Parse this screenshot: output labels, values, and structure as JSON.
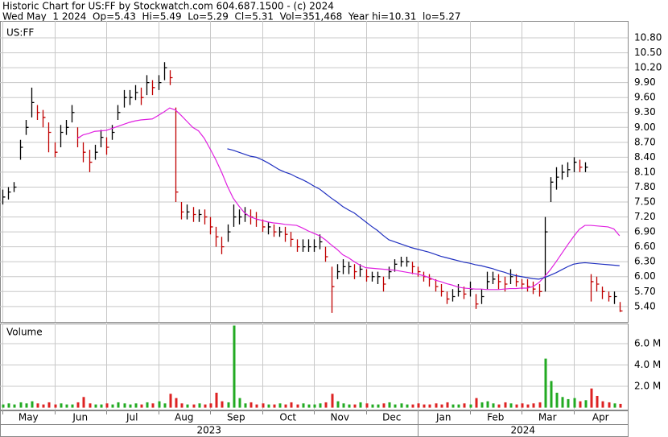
{
  "header": {
    "title": "Historic Chart for US:FF by Stockwatch.com 604.687.1500 - (c) 2024",
    "quote": "Wed May  1 2024  Op=5.43  Hi=5.49  Lo=5.29  Cl=5.31  Vol=351,468  Year hi=10.31  lo=5.27"
  },
  "chart_data": {
    "type": "ohlc",
    "symbol": "US:FF",
    "volume_title": "Volume",
    "categories": [
      "May",
      null,
      null,
      null,
      null,
      null,
      null,
      null,
      null,
      "Jun",
      null,
      null,
      null,
      null,
      null,
      null,
      null,
      null,
      "Jul",
      null,
      null,
      null,
      null,
      null,
      null,
      null,
      null,
      "Aug",
      null,
      null,
      null,
      null,
      null,
      null,
      null,
      null,
      "Sep",
      null,
      null,
      null,
      null,
      null,
      null,
      null,
      null,
      "Oct",
      null,
      null,
      null,
      null,
      null,
      null,
      null,
      null,
      "Nov",
      null,
      null,
      null,
      null,
      null,
      null,
      null,
      null,
      "Dec",
      null,
      null,
      null,
      null,
      null,
      null,
      null,
      null,
      "Jan",
      null,
      null,
      null,
      null,
      null,
      null,
      null,
      null,
      "Feb",
      null,
      null,
      null,
      null,
      null,
      null,
      null,
      null,
      "Mar",
      null,
      null,
      null,
      null,
      null,
      null,
      null,
      null,
      "Apr",
      null,
      null,
      null,
      null,
      null,
      null,
      null,
      null
    ],
    "years": [
      "2023",
      "2024"
    ],
    "high": [
      7.75,
      7.8,
      7.9,
      8.75,
      9.15,
      9.8,
      9.45,
      9.35,
      9.1,
      8.7,
      9.05,
      9.15,
      9.45,
      9.0,
      8.7,
      8.55,
      8.65,
      8.95,
      8.8,
      9.05,
      9.45,
      9.75,
      9.75,
      9.85,
      9.8,
      10.05,
      9.95,
      10.05,
      10.31,
      10.15,
      9.4,
      7.5,
      7.45,
      7.4,
      7.35,
      7.35,
      7.2,
      7.0,
      6.8,
      7.05,
      7.45,
      7.35,
      7.4,
      7.35,
      7.3,
      7.15,
      7.1,
      7.05,
      7.0,
      7.0,
      6.9,
      6.75,
      6.75,
      6.75,
      6.75,
      6.85,
      6.6,
      6.2,
      6.25,
      6.35,
      6.3,
      6.25,
      6.25,
      6.15,
      6.1,
      6.1,
      6.0,
      6.2,
      6.35,
      6.4,
      6.4,
      6.3,
      6.2,
      6.1,
      6.05,
      5.95,
      5.85,
      5.7,
      5.75,
      5.85,
      5.8,
      5.9,
      5.65,
      5.75,
      6.1,
      6.1,
      6.05,
      6.0,
      6.15,
      6.05,
      5.95,
      5.95,
      5.9,
      5.85,
      7.2,
      8.0,
      8.2,
      8.25,
      8.3,
      8.4,
      8.35,
      8.3,
      6.05,
      6.0,
      5.8,
      5.7,
      5.7,
      5.49
    ],
    "low": [
      7.45,
      7.55,
      7.7,
      8.35,
      8.85,
      9.2,
      9.15,
      9.0,
      8.5,
      8.4,
      8.6,
      8.85,
      9.1,
      8.6,
      8.3,
      8.1,
      8.35,
      8.6,
      8.45,
      8.75,
      9.15,
      9.4,
      9.45,
      9.55,
      9.45,
      9.65,
      9.65,
      9.75,
      9.95,
      9.85,
      7.5,
      7.15,
      7.15,
      7.1,
      7.1,
      7.05,
      6.85,
      6.6,
      6.45,
      6.7,
      7.0,
      7.05,
      7.1,
      7.05,
      7.0,
      6.9,
      6.85,
      6.8,
      6.8,
      6.7,
      6.6,
      6.5,
      6.5,
      6.5,
      6.5,
      6.55,
      6.3,
      5.27,
      5.95,
      6.05,
      6.05,
      5.95,
      6.0,
      5.9,
      5.9,
      5.85,
      5.7,
      5.95,
      6.1,
      6.2,
      6.2,
      6.05,
      6.0,
      5.9,
      5.8,
      5.7,
      5.6,
      5.45,
      5.5,
      5.6,
      5.55,
      5.6,
      5.35,
      5.45,
      5.75,
      5.85,
      5.75,
      5.7,
      5.85,
      5.8,
      5.75,
      5.7,
      5.65,
      5.6,
      5.7,
      7.5,
      7.75,
      7.95,
      8.0,
      8.1,
      8.1,
      8.1,
      5.5,
      5.7,
      5.55,
      5.5,
      5.45,
      5.29
    ],
    "close": [
      7.6,
      7.7,
      7.8,
      8.6,
      9.0,
      9.5,
      9.3,
      9.2,
      8.9,
      8.5,
      8.9,
      9.0,
      9.3,
      8.8,
      8.5,
      8.3,
      8.5,
      8.8,
      8.6,
      8.9,
      9.3,
      9.6,
      9.6,
      9.7,
      9.6,
      9.9,
      9.8,
      9.9,
      10.2,
      10.0,
      7.7,
      7.3,
      7.3,
      7.25,
      7.25,
      7.2,
      7.0,
      6.8,
      6.6,
      6.9,
      7.2,
      7.2,
      7.25,
      7.2,
      7.15,
      7.0,
      7.0,
      6.9,
      6.9,
      6.85,
      6.75,
      6.6,
      6.6,
      6.6,
      6.6,
      6.7,
      6.4,
      5.8,
      6.1,
      6.2,
      6.2,
      6.1,
      6.15,
      6.0,
      6.0,
      6.0,
      5.85,
      6.1,
      6.25,
      6.3,
      6.3,
      6.2,
      6.1,
      6.0,
      5.95,
      5.8,
      5.7,
      5.55,
      5.6,
      5.7,
      5.65,
      5.75,
      5.45,
      5.6,
      5.9,
      5.95,
      5.9,
      5.85,
      6.0,
      5.9,
      5.85,
      5.8,
      5.75,
      5.7,
      6.9,
      7.9,
      8.0,
      8.1,
      8.15,
      8.3,
      8.2,
      8.2,
      5.9,
      5.85,
      5.7,
      5.6,
      5.6,
      5.31
    ],
    "volume": [
      0.3,
      0.4,
      0.3,
      0.5,
      0.4,
      0.6,
      0.4,
      0.3,
      0.5,
      0.3,
      0.4,
      0.3,
      0.3,
      0.5,
      1.0,
      0.4,
      0.3,
      0.3,
      0.4,
      0.3,
      0.5,
      0.4,
      0.3,
      0.4,
      0.3,
      0.5,
      0.4,
      0.6,
      0.4,
      1.3,
      0.9,
      0.4,
      0.3,
      0.3,
      0.4,
      0.3,
      0.4,
      1.4,
      0.6,
      0.5,
      7.7,
      0.9,
      0.4,
      0.5,
      0.3,
      0.4,
      0.3,
      0.3,
      0.4,
      0.3,
      0.5,
      0.3,
      0.4,
      0.3,
      0.3,
      0.4,
      0.5,
      1.3,
      0.6,
      0.4,
      0.3,
      0.3,
      0.5,
      0.4,
      0.3,
      0.3,
      0.4,
      0.5,
      0.3,
      0.4,
      0.3,
      0.3,
      0.4,
      0.3,
      0.3,
      0.4,
      0.3,
      0.5,
      0.3,
      0.3,
      0.4,
      0.3,
      0.9,
      0.5,
      0.6,
      0.4,
      0.3,
      0.5,
      0.4,
      0.3,
      0.4,
      0.3,
      0.4,
      0.5,
      4.6,
      2.5,
      1.4,
      1.0,
      0.8,
      0.9,
      0.6,
      0.7,
      1.8,
      1.1,
      0.6,
      0.5,
      0.4,
      0.35
    ],
    "moving_averages": [
      {
        "color": "#e020e0",
        "values": [
          null,
          null,
          null,
          null,
          null,
          null,
          null,
          null,
          null,
          null,
          null,
          null,
          null,
          8.78,
          8.85,
          8.88,
          8.92,
          8.93,
          8.94,
          8.98,
          9.02,
          9.06,
          9.1,
          9.13,
          9.15,
          9.16,
          9.17,
          9.24,
          9.31,
          9.39,
          9.35,
          9.24,
          9.12,
          9.0,
          8.93,
          8.78,
          8.57,
          8.35,
          8.1,
          7.82,
          7.58,
          7.42,
          7.28,
          7.2,
          7.16,
          7.13,
          7.1,
          7.08,
          7.07,
          7.05,
          7.04,
          7.03,
          6.98,
          6.92,
          6.87,
          6.82,
          6.74,
          6.64,
          6.55,
          6.44,
          6.38,
          6.3,
          6.23,
          6.18,
          6.17,
          6.16,
          6.15,
          6.14,
          6.13,
          6.11,
          6.09,
          6.07,
          6.05,
          6.02,
          5.98,
          5.93,
          5.9,
          5.86,
          5.83,
          5.79,
          5.77,
          5.76,
          5.75,
          5.75,
          5.74,
          5.74,
          5.74,
          5.75,
          5.76,
          5.76,
          5.77,
          5.77,
          5.8,
          5.88,
          6.0,
          6.14,
          6.3,
          6.47,
          6.64,
          6.8,
          6.95,
          7.03,
          7.03,
          7.02,
          7.01,
          7.0,
          6.96,
          6.82
        ]
      },
      {
        "color": "#2030c0",
        "values": [
          null,
          null,
          null,
          null,
          null,
          null,
          null,
          null,
          null,
          null,
          null,
          null,
          null,
          null,
          null,
          null,
          null,
          null,
          null,
          null,
          null,
          null,
          null,
          null,
          null,
          null,
          null,
          null,
          null,
          null,
          null,
          null,
          null,
          null,
          null,
          null,
          null,
          null,
          null,
          8.57,
          8.54,
          8.5,
          8.46,
          8.42,
          8.4,
          8.35,
          8.29,
          8.22,
          8.15,
          8.1,
          8.06,
          8.0,
          7.95,
          7.89,
          7.82,
          7.76,
          7.67,
          7.58,
          7.5,
          7.41,
          7.34,
          7.28,
          7.19,
          7.1,
          7.01,
          6.93,
          6.83,
          6.74,
          6.7,
          6.66,
          6.62,
          6.58,
          6.55,
          6.52,
          6.49,
          6.45,
          6.41,
          6.38,
          6.35,
          6.32,
          6.29,
          6.27,
          6.24,
          6.22,
          6.19,
          6.16,
          6.12,
          6.09,
          6.05,
          6.02,
          6.0,
          5.98,
          5.96,
          5.95,
          5.98,
          6.03,
          6.08,
          6.14,
          6.2,
          6.25,
          6.27,
          6.28,
          6.27,
          6.26,
          6.25,
          6.24,
          6.23,
          6.22
        ]
      }
    ],
    "up_color": "#000000",
    "down_color": "#c00000",
    "volume_up_color": "#22aa22",
    "volume_down_color": "#dd2222",
    "ylim": [
      5.09,
      11.14
    ],
    "yticks": [
      {
        "value": 5.4,
        "label": "5.40"
      },
      {
        "value": 5.7,
        "label": "5.70"
      },
      {
        "value": 6.0,
        "label": "6.00"
      },
      {
        "value": 6.3,
        "label": "6.30"
      },
      {
        "value": 6.6,
        "label": "6.60"
      },
      {
        "value": 6.9,
        "label": "6.90"
      },
      {
        "value": 7.2,
        "label": "7.20"
      },
      {
        "value": 7.5,
        "label": "7.50"
      },
      {
        "value": 7.8,
        "label": "7.80"
      },
      {
        "value": 8.1,
        "label": "8.10"
      },
      {
        "value": 8.4,
        "label": "8.40"
      },
      {
        "value": 8.7,
        "label": "8.70"
      },
      {
        "value": 9.0,
        "label": "9.00"
      },
      {
        "value": 9.3,
        "label": "9.30"
      },
      {
        "value": 9.6,
        "label": "9.60"
      },
      {
        "value": 9.9,
        "label": "9.90"
      },
      {
        "value": 10.2,
        "label": "10.20"
      },
      {
        "value": 10.5,
        "label": "10.50"
      },
      {
        "value": 10.8,
        "label": "10.80"
      }
    ],
    "volume_ylim": [
      -0.26,
      7.89
    ],
    "volume_yticks": [
      {
        "value": 2,
        "label": "2.0 M"
      },
      {
        "value": 4,
        "label": "4.0 M"
      },
      {
        "value": 6,
        "label": "6.0 M"
      }
    ],
    "grid": true
  }
}
